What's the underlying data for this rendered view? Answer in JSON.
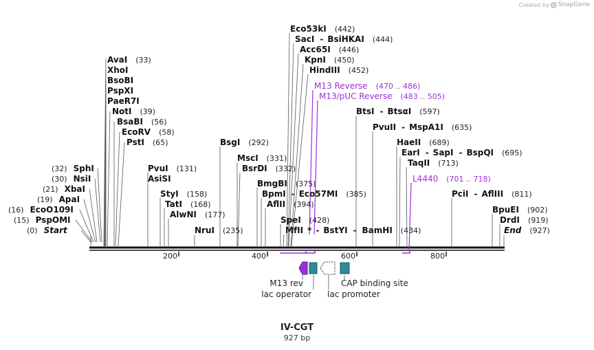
{
  "watermark": {
    "created_by": "Created by",
    "brand": "SnapGene"
  },
  "map": {
    "name": "IV-CGT",
    "size_label": "927 bp",
    "length": 927,
    "ticks": [
      "200",
      "400",
      "600",
      "800"
    ]
  },
  "left_sites": [
    {
      "name": "AvaI",
      "pos": "(33)"
    },
    {
      "name": "XhoI",
      "pos": ""
    },
    {
      "name": "BsoBI",
      "pos": ""
    },
    {
      "name": "PspXI",
      "pos": ""
    },
    {
      "name": "PaeR7I",
      "pos": ""
    },
    {
      "name": "NotI",
      "pos": "(39)"
    },
    {
      "name": "BsaBI",
      "pos": "(56)"
    },
    {
      "name": "EcoRV",
      "pos": "(58)"
    },
    {
      "name": "PstI",
      "pos": "(65)"
    }
  ],
  "left_lower_sites": [
    {
      "name": "SphI",
      "pos": "(32)"
    },
    {
      "name": "NsiI",
      "pos": "(30)"
    },
    {
      "name": "XbaI",
      "pos": "(21)"
    },
    {
      "name": "ApaI",
      "pos": "(19)"
    },
    {
      "name": "EcoO109I",
      "pos": "(16)"
    },
    {
      "name": "PspOMI",
      "pos": "(15)"
    }
  ],
  "ends": {
    "start": "Start",
    "start_pos": "(0)",
    "end": "End",
    "end_pos": "(927)"
  },
  "mid_sites": [
    {
      "name": "PvuI",
      "pos": "(131)"
    },
    {
      "name": "AsiSI",
      "pos": ""
    },
    {
      "name": "StyI",
      "pos": "(158)"
    },
    {
      "name": "TatI",
      "pos": "(168)"
    },
    {
      "name": "AlwNI",
      "pos": "(177)"
    },
    {
      "name": "NruI",
      "pos": "(235)"
    },
    {
      "name": "BsgI",
      "pos": "(292)"
    },
    {
      "name": "MscI",
      "pos": "(331)"
    },
    {
      "name": "BsrDI",
      "pos": "(332)"
    },
    {
      "name": "BmgBI",
      "pos": "(375)"
    },
    {
      "name": "BpmI",
      "pos": ""
    },
    {
      "name": "Eco57MI",
      "pos": "(385)"
    },
    {
      "name": "AflII",
      "pos": "(394)"
    },
    {
      "name": "SpeI",
      "pos": "(428)"
    },
    {
      "name": "MfII",
      "pos": ""
    },
    {
      "name": "BstYI",
      "pos": ""
    },
    {
      "name": "BamHI",
      "pos": "(434)"
    },
    {
      "name": "*",
      "pos": ""
    }
  ],
  "top_sites": [
    {
      "name": "Eco53kI",
      "pos": "(442)"
    },
    {
      "name": "SacI",
      "pos": ""
    },
    {
      "name": "BsiHKAI",
      "pos": "(444)"
    },
    {
      "name": "Acc65I",
      "pos": "(446)"
    },
    {
      "name": "KpnI",
      "pos": "(450)"
    },
    {
      "name": "HindIII",
      "pos": "(452)"
    }
  ],
  "right_sites": [
    {
      "name": "BtsI",
      "pos": ""
    },
    {
      "name": "BtsαI",
      "pos": "(597)"
    },
    {
      "name": "PvuII",
      "pos": ""
    },
    {
      "name": "MspA1I",
      "pos": "(635)"
    },
    {
      "name": "HaeII",
      "pos": "(689)"
    },
    {
      "name": "EarI",
      "pos": ""
    },
    {
      "name": "SapI",
      "pos": ""
    },
    {
      "name": "BspQI",
      "pos": "(695)"
    },
    {
      "name": "TaqII",
      "pos": "(713)"
    },
    {
      "name": "PciI",
      "pos": ""
    },
    {
      "name": "AflIII",
      "pos": "(811)"
    },
    {
      "name": "BpuEI",
      "pos": "(902)"
    },
    {
      "name": "DrdI",
      "pos": "(919)"
    }
  ],
  "primers": [
    {
      "name": "M13 Reverse",
      "range": "(470 .. 486)"
    },
    {
      "name": "M13/pUC Reverse",
      "range": "(483 .. 505)"
    },
    {
      "name": "L4440",
      "range": "(701 .. 718)"
    }
  ],
  "features": [
    {
      "name": "M13 rev"
    },
    {
      "name": "lac operator"
    },
    {
      "name": "lac promoter"
    },
    {
      "name": "CAP binding site"
    }
  ],
  "colors": {
    "primer": "#9b30d9",
    "feature_teal": "#2e8b9a",
    "backbone": "#111111"
  }
}
